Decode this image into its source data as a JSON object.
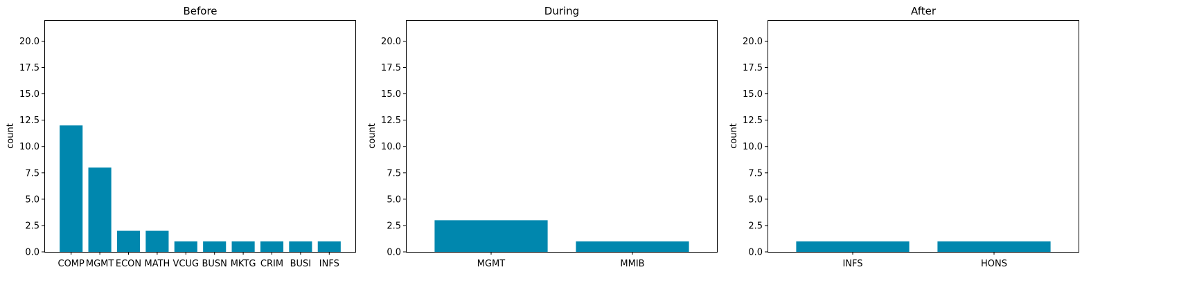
{
  "colors": {
    "bar": "#0087ae",
    "axis": "#000000"
  },
  "chart_data": [
    {
      "type": "bar",
      "title": "Before",
      "xlabel": "",
      "ylabel": "count",
      "ylim": [
        0,
        22
      ],
      "yticks": [
        0,
        2.5,
        5,
        7.5,
        10,
        12.5,
        15,
        17.5,
        20
      ],
      "ytick_labels": [
        "0.0",
        "2.5",
        "5.0",
        "7.5",
        "10.0",
        "12.5",
        "15.0",
        "17.5",
        "20.0"
      ],
      "categories": [
        "COMP",
        "MGMT",
        "ECON",
        "MATH",
        "VCUG",
        "BUSN",
        "MKTG",
        "CRIM",
        "BUSI",
        "INFS"
      ],
      "values": [
        12,
        8,
        2,
        2,
        1,
        1,
        1,
        1,
        1,
        1
      ],
      "grid": false
    },
    {
      "type": "bar",
      "title": "During",
      "xlabel": "",
      "ylabel": "count",
      "ylim": [
        0,
        22
      ],
      "yticks": [
        0,
        2.5,
        5,
        7.5,
        10,
        12.5,
        15,
        17.5,
        20
      ],
      "ytick_labels": [
        "0.0",
        "2.5",
        "5.0",
        "7.5",
        "10.0",
        "12.5",
        "15.0",
        "17.5",
        "20.0"
      ],
      "categories": [
        "MGMT",
        "MMIB"
      ],
      "values": [
        3,
        1
      ],
      "grid": false
    },
    {
      "type": "bar",
      "title": "After",
      "xlabel": "",
      "ylabel": "count",
      "ylim": [
        0,
        22
      ],
      "yticks": [
        0,
        2.5,
        5,
        7.5,
        10,
        12.5,
        15,
        17.5,
        20
      ],
      "ytick_labels": [
        "0.0",
        "2.5",
        "5.0",
        "7.5",
        "10.0",
        "12.5",
        "15.0",
        "17.5",
        "20.0"
      ],
      "categories": [
        "INFS",
        "HONS"
      ],
      "values": [
        1,
        1
      ],
      "grid": false
    }
  ]
}
